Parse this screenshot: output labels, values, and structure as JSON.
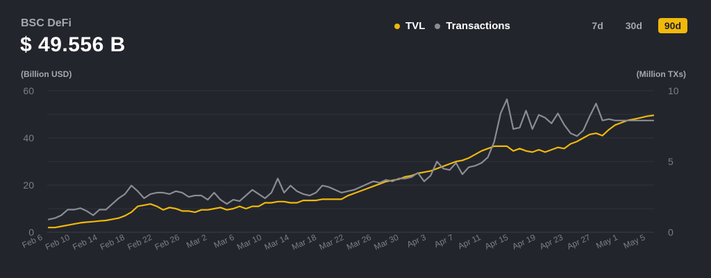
{
  "header": {
    "title": "BSC DeFi",
    "value": "$ 49.556 B"
  },
  "legend": [
    {
      "label": "TVL",
      "color": "#f0b90b"
    },
    {
      "label": "Transactions",
      "color": "#8b8d94"
    }
  ],
  "ranges": [
    {
      "label": "7d",
      "active": false
    },
    {
      "label": "30d",
      "active": false
    },
    {
      "label": "90d",
      "active": true
    }
  ],
  "axes": {
    "left_unit": "(Billion USD)",
    "right_unit": "(Million TXs)"
  },
  "chart_data": {
    "type": "line",
    "x_labels": [
      "Feb 6",
      "Feb 10",
      "Feb 14",
      "Feb 18",
      "Feb 22",
      "Feb 26",
      "Mar 2",
      "Mar 6",
      "Mar 10",
      "Mar 14",
      "Mar 18",
      "Mar 22",
      "Mar 26",
      "Mar 30",
      "Apr 3",
      "Apr 7",
      "Apr 11",
      "Apr 15",
      "Apr 19",
      "Apr 23",
      "Apr 27",
      "May 1",
      "May 5"
    ],
    "y_left": {
      "label": "(Billion USD)",
      "ticks": [
        0,
        20,
        40,
        60
      ],
      "lim": [
        0,
        60
      ]
    },
    "y_right": {
      "label": "(Million TXs)",
      "ticks": [
        0,
        5,
        10
      ],
      "lim": [
        0,
        10
      ]
    },
    "grid": true,
    "legend_position": "top-right",
    "series": [
      {
        "name": "TVL",
        "axis": "left",
        "color": "#f0b90b",
        "values": [
          2.0,
          2.0,
          2.5,
          3.0,
          3.5,
          4.0,
          4.3,
          4.5,
          4.8,
          5.0,
          5.5,
          6.0,
          7.0,
          8.5,
          11.0,
          11.5,
          12.0,
          11.0,
          9.5,
          10.5,
          10.0,
          9.0,
          9.0,
          8.5,
          9.5,
          9.5,
          10.0,
          10.5,
          9.5,
          10.0,
          11.0,
          10.0,
          11.0,
          11.0,
          12.5,
          12.5,
          13.0,
          13.0,
          12.5,
          12.5,
          13.5,
          13.5,
          13.5,
          14.0,
          14.0,
          14.0,
          14.0,
          15.5,
          16.5,
          17.5,
          18.5,
          19.5,
          20.5,
          21.5,
          22.0,
          22.5,
          23.5,
          24.0,
          25.0,
          25.5,
          26.0,
          27.0,
          28.0,
          29.0,
          30.0,
          30.5,
          31.5,
          33.0,
          34.5,
          35.5,
          36.5,
          36.5,
          36.5,
          34.5,
          35.5,
          34.5,
          34.0,
          35.0,
          34.0,
          35.0,
          36.0,
          35.5,
          37.5,
          38.5,
          40.0,
          41.5,
          42.0,
          41.0,
          43.5,
          45.5,
          46.5,
          47.5,
          48.0,
          48.6,
          49.2,
          49.6
        ]
      },
      {
        "name": "Transactions",
        "axis": "right",
        "color": "#8b8d94",
        "values": [
          0.9,
          1.0,
          1.2,
          1.6,
          1.6,
          1.7,
          1.5,
          1.2,
          1.6,
          1.6,
          2.0,
          2.4,
          2.7,
          3.3,
          2.9,
          2.4,
          2.7,
          2.8,
          2.8,
          2.7,
          2.9,
          2.8,
          2.5,
          2.6,
          2.6,
          2.3,
          2.8,
          2.3,
          2.0,
          2.3,
          2.2,
          2.6,
          3.0,
          2.7,
          2.4,
          2.8,
          3.8,
          2.8,
          3.3,
          2.9,
          2.7,
          2.6,
          2.8,
          3.3,
          3.2,
          3.0,
          2.8,
          2.9,
          3.0,
          3.2,
          3.4,
          3.6,
          3.5,
          3.7,
          3.6,
          3.8,
          3.8,
          3.9,
          4.2,
          3.6,
          4.0,
          5.0,
          4.5,
          4.4,
          4.9,
          4.1,
          4.6,
          4.7,
          4.9,
          5.3,
          6.4,
          8.4,
          9.4,
          7.3,
          7.4,
          8.6,
          7.3,
          8.3,
          8.1,
          7.7,
          8.4,
          7.6,
          7.0,
          6.8,
          7.2,
          8.2,
          9.1,
          7.9,
          8.0,
          7.9,
          7.9,
          7.9,
          7.9,
          7.9,
          7.9,
          7.9
        ]
      }
    ]
  }
}
